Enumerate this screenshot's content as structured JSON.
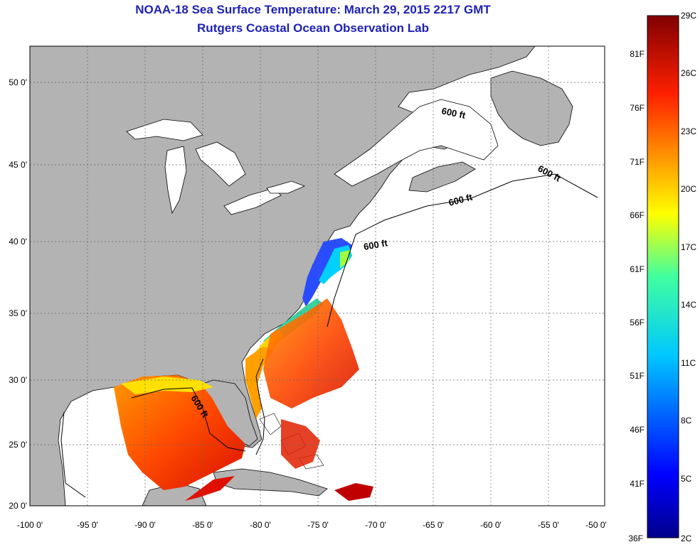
{
  "header": {
    "title": "NOAA-18 Sea Surface Temperature:  March 29, 2015 2217 GMT",
    "subtitle": "Rutgers Coastal Ocean Observation Lab"
  },
  "map": {
    "lon_labels": [
      "-100 0'",
      "-95 0'",
      "-90 0'",
      "-85 0'",
      "-80 0'",
      "-75 0'",
      "-70 0'",
      "-65 0'",
      "-60 0'",
      "-55 0'",
      "-50 0'"
    ],
    "lat_labels": [
      "20 0'",
      "25 0'",
      "30 0'",
      "35 0'",
      "40 0'",
      "45 0'",
      "50 0'"
    ],
    "contour_labels": [
      "600 ft",
      "600 ft",
      "600 ft",
      "600 ft",
      "600 ft"
    ],
    "colors": {
      "land": "#b3b3b3",
      "ocean": "#ffffff",
      "title": "#1e22b4"
    }
  },
  "colorbar": {
    "fahrenheit": [
      "81F",
      "76F",
      "71F",
      "66F",
      "61F",
      "56F",
      "51F",
      "46F",
      "41F",
      "36F"
    ],
    "celsius": [
      "29C",
      "26C",
      "23C",
      "20C",
      "17C",
      "14C",
      "11C",
      "8C",
      "5C",
      "2C"
    ]
  }
}
